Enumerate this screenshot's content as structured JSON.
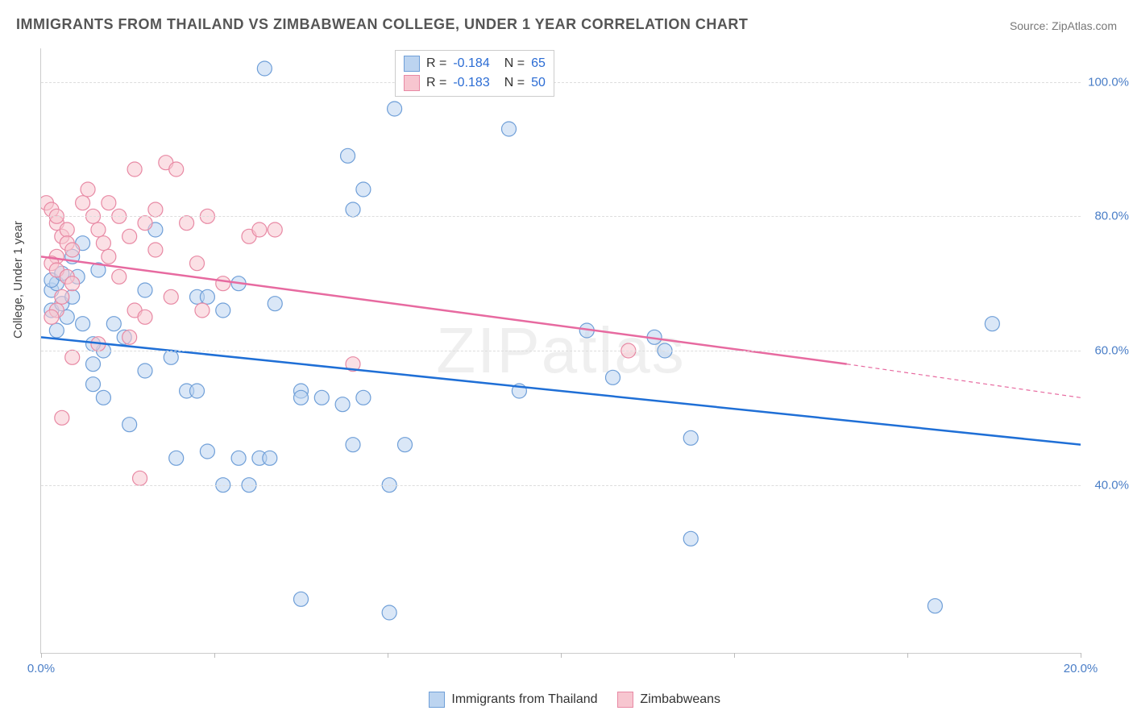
{
  "title": "IMMIGRANTS FROM THAILAND VS ZIMBABWEAN COLLEGE, UNDER 1 YEAR CORRELATION CHART",
  "source": "Source: ZipAtlas.com",
  "watermark": "ZIPatlas",
  "ylabel": "College, Under 1 year",
  "chart": {
    "type": "scatter",
    "background_color": "#ffffff",
    "grid_color": "#dddddd",
    "axis_color": "#cccccc",
    "xlim": [
      0,
      20
    ],
    "ylim": [
      15,
      105
    ],
    "xtick_positions": [
      0,
      3.33,
      6.67,
      10,
      13.33,
      16.67,
      20
    ],
    "xtick_labels": {
      "0": "0.0%",
      "20": "20.0%"
    },
    "ytick_positions": [
      40,
      60,
      80,
      100
    ],
    "ytick_labels": [
      "40.0%",
      "60.0%",
      "80.0%",
      "100.0%"
    ],
    "label_color": "#4a7ec7",
    "label_fontsize": 15,
    "marker_radius": 9,
    "marker_opacity": 0.55,
    "series": [
      {
        "name": "Immigrants from Thailand",
        "color_fill": "#bcd4f0",
        "color_stroke": "#6f9fd8",
        "r": -0.184,
        "n": 65,
        "trend": {
          "color": "#1f6fd6",
          "width": 2.5,
          "x1": 0,
          "y1": 62,
          "x2": 20,
          "y2": 46
        },
        "points": [
          [
            0.2,
            69
          ],
          [
            0.3,
            70
          ],
          [
            0.2,
            66
          ],
          [
            0.4,
            67
          ],
          [
            0.6,
            68
          ],
          [
            0.5,
            65
          ],
          [
            0.8,
            64
          ],
          [
            0.3,
            63
          ],
          [
            0.2,
            70.5
          ],
          [
            0.7,
            71
          ],
          [
            0.4,
            71.5
          ],
          [
            4.3,
            102
          ],
          [
            6.8,
            96
          ],
          [
            5.9,
            89
          ],
          [
            6.2,
            84
          ],
          [
            6.0,
            81
          ],
          [
            9.0,
            93
          ],
          [
            1.2,
            60
          ],
          [
            1.6,
            62
          ],
          [
            1.0,
            58
          ],
          [
            2.0,
            57
          ],
          [
            2.5,
            59
          ],
          [
            2.0,
            69
          ],
          [
            3.0,
            68
          ],
          [
            3.5,
            66
          ],
          [
            1.4,
            64
          ],
          [
            1.0,
            55
          ],
          [
            1.2,
            53
          ],
          [
            2.8,
            54
          ],
          [
            3.0,
            54
          ],
          [
            2.6,
            44
          ],
          [
            3.2,
            45
          ],
          [
            3.8,
            44
          ],
          [
            4.2,
            44
          ],
          [
            4.4,
            44
          ],
          [
            5.0,
            54
          ],
          [
            5.0,
            53
          ],
          [
            5.4,
            53
          ],
          [
            5.8,
            52
          ],
          [
            6.2,
            53
          ],
          [
            6.0,
            46
          ],
          [
            7.0,
            46
          ],
          [
            9.2,
            54
          ],
          [
            11.0,
            56
          ],
          [
            11.8,
            62
          ],
          [
            12.5,
            47
          ],
          [
            10.5,
            63
          ],
          [
            3.2,
            68
          ],
          [
            3.8,
            70
          ],
          [
            4.5,
            67
          ],
          [
            12.0,
            60
          ],
          [
            12.5,
            32
          ],
          [
            5.0,
            23
          ],
          [
            6.7,
            21
          ],
          [
            17.2,
            22
          ],
          [
            1.7,
            49
          ],
          [
            1.0,
            61
          ],
          [
            0.6,
            74
          ],
          [
            0.8,
            76
          ],
          [
            1.1,
            72
          ],
          [
            2.2,
            78
          ],
          [
            3.5,
            40
          ],
          [
            4.0,
            40
          ],
          [
            6.7,
            40
          ],
          [
            18.3,
            64
          ]
        ]
      },
      {
        "name": "Zimbabweans",
        "color_fill": "#f7c6d0",
        "color_stroke": "#e889a4",
        "r": -0.183,
        "n": 50,
        "trend": {
          "color": "#e76aa0",
          "width": 2.5,
          "x1": 0,
          "y1": 74,
          "x2": 15.5,
          "y2": 58,
          "dash_x2": 20,
          "dash_y2": 53
        },
        "points": [
          [
            0.1,
            82
          ],
          [
            0.2,
            81
          ],
          [
            0.3,
            79
          ],
          [
            0.3,
            80
          ],
          [
            0.4,
            77
          ],
          [
            0.5,
            78
          ],
          [
            0.5,
            76
          ],
          [
            0.6,
            75
          ],
          [
            0.3,
            74
          ],
          [
            0.2,
            73
          ],
          [
            0.3,
            72
          ],
          [
            0.5,
            71
          ],
          [
            0.6,
            70
          ],
          [
            0.4,
            68
          ],
          [
            0.3,
            66
          ],
          [
            0.2,
            65
          ],
          [
            0.8,
            82
          ],
          [
            0.9,
            84
          ],
          [
            1.0,
            80
          ],
          [
            1.1,
            78
          ],
          [
            1.2,
            76
          ],
          [
            1.3,
            74
          ],
          [
            1.3,
            82
          ],
          [
            1.5,
            80
          ],
          [
            1.5,
            71
          ],
          [
            1.7,
            77
          ],
          [
            1.8,
            66
          ],
          [
            1.8,
            87
          ],
          [
            2.0,
            79
          ],
          [
            2.0,
            65
          ],
          [
            2.2,
            75
          ],
          [
            2.2,
            81
          ],
          [
            2.4,
            88
          ],
          [
            2.5,
            68
          ],
          [
            2.6,
            87
          ],
          [
            2.8,
            79
          ],
          [
            3.0,
            73
          ],
          [
            3.1,
            66
          ],
          [
            3.2,
            80
          ],
          [
            3.5,
            70
          ],
          [
            4.0,
            77
          ],
          [
            4.2,
            78
          ],
          [
            4.5,
            78
          ],
          [
            6.0,
            58
          ],
          [
            0.6,
            59
          ],
          [
            0.4,
            50
          ],
          [
            1.9,
            41
          ],
          [
            1.1,
            61
          ],
          [
            1.7,
            62
          ],
          [
            11.3,
            60
          ]
        ]
      }
    ]
  },
  "bottom_legend": [
    {
      "label": "Immigrants from Thailand",
      "fill": "#bcd4f0",
      "stroke": "#6f9fd8"
    },
    {
      "label": "Zimbabweans",
      "fill": "#f7c6d0",
      "stroke": "#e889a4"
    }
  ]
}
